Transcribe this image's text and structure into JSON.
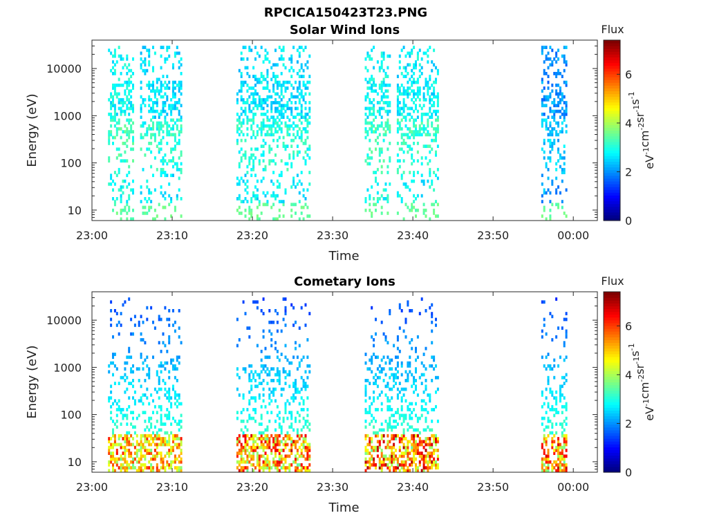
{
  "figure_title": "RPCICA150423T23.PNG",
  "colormap": "jet",
  "chart_data": [
    {
      "type": "heatmap",
      "title": "Solar Wind Ions",
      "xlabel": "Time",
      "ylabel": "Energy (eV)",
      "yscale": "log",
      "ylim": [
        6,
        40000
      ],
      "xlim_minutes_after_23_00": [
        0,
        63
      ],
      "x_ticks": [
        "23:00",
        "23:10",
        "23:20",
        "23:30",
        "23:40",
        "23:50",
        "00:00"
      ],
      "y_ticks": [
        "10",
        "100",
        "1000",
        "10000"
      ],
      "colorbar": {
        "label": "Flux",
        "unit_label": "eV-1cm-2sr-1s-1",
        "range": [
          0,
          7.4
        ],
        "ticks": [
          "0",
          "2",
          "4",
          "6"
        ]
      },
      "grid": false,
      "activity_bursts": [
        {
          "start": "23:02",
          "end": "23:05",
          "peak_log_flux": 3.2
        },
        {
          "start": "23:06",
          "end": "23:11",
          "peak_log_flux": 3.0
        },
        {
          "start": "23:18",
          "end": "23:27",
          "peak_log_flux": 3.0
        },
        {
          "start": "23:34",
          "end": "23:37",
          "peak_log_flux": 3.2
        },
        {
          "start": "23:38",
          "end": "23:43",
          "peak_log_flux": 3.1
        },
        {
          "start": "23:56",
          "end": "23:59",
          "peak_log_flux": 2.4
        }
      ]
    },
    {
      "type": "heatmap",
      "title": "Cometary Ions",
      "xlabel": "Time",
      "ylabel": "Energy (eV)",
      "yscale": "log",
      "ylim": [
        6,
        40000
      ],
      "xlim_minutes_after_23_00": [
        0,
        63
      ],
      "x_ticks": [
        "23:00",
        "23:10",
        "23:20",
        "23:30",
        "23:40",
        "23:50",
        "00:00"
      ],
      "y_ticks": [
        "10",
        "100",
        "1000",
        "10000"
      ],
      "colorbar": {
        "label": "Flux",
        "unit_label": "eV-1cm-2sr-1s-1",
        "range": [
          0,
          7.4
        ],
        "ticks": [
          "0",
          "2",
          "4",
          "6"
        ]
      },
      "grid": false,
      "activity_bursts": [
        {
          "start": "23:02",
          "end": "23:11",
          "peak_log_flux": 6.0
        },
        {
          "start": "23:18",
          "end": "23:27",
          "peak_log_flux": 6.5
        },
        {
          "start": "23:34",
          "end": "23:43",
          "peak_log_flux": 6.8
        },
        {
          "start": "23:56",
          "end": "23:59",
          "peak_log_flux": 6.5
        }
      ]
    }
  ]
}
